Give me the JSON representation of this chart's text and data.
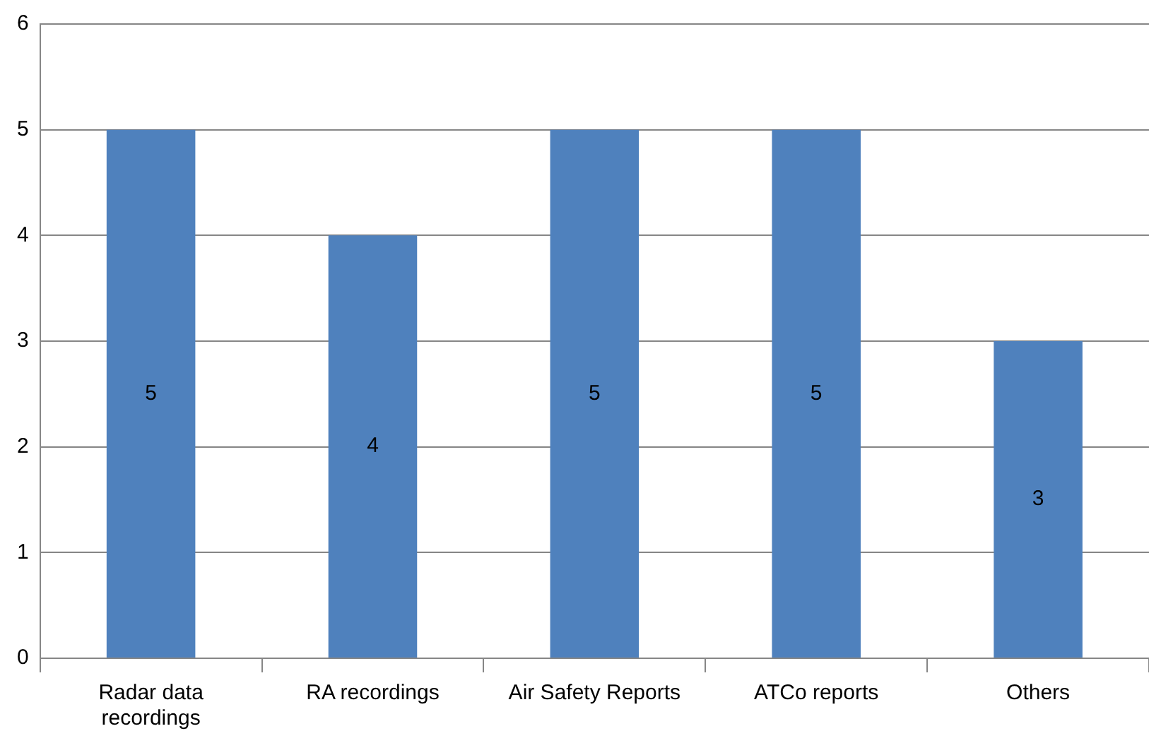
{
  "chart_data": {
    "type": "bar",
    "categories": [
      "Radar data recordings",
      "RA recordings",
      "Air Safety Reports",
      "ATCo reports",
      "Others"
    ],
    "values": [
      5,
      4,
      5,
      5,
      3
    ],
    "color": "#4f81bd",
    "ylim": [
      0,
      6
    ],
    "yticks": [
      0,
      1,
      2,
      3,
      4,
      5,
      6
    ],
    "grid": "y",
    "data_labels": true
  }
}
